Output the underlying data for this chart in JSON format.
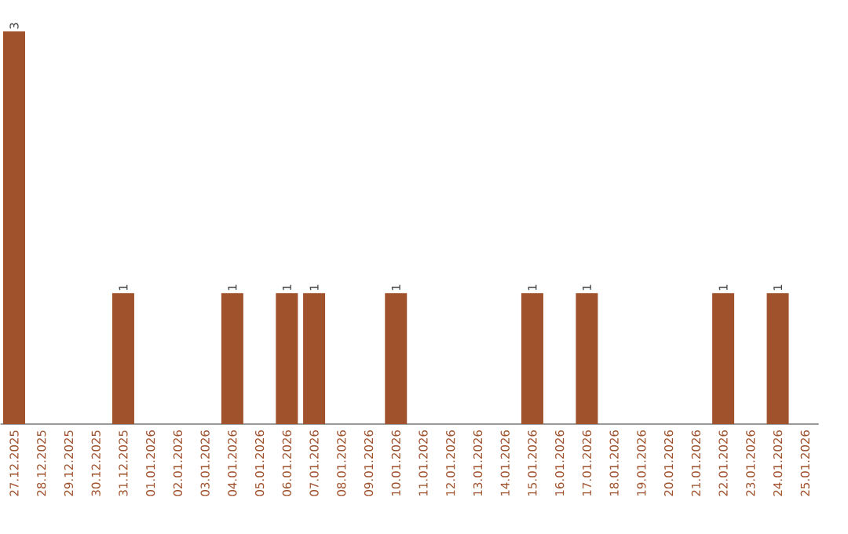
{
  "chart_data": {
    "type": "bar",
    "categories": [
      "27.12.2025",
      "28.12.2025",
      "29.12.2025",
      "30.12.2025",
      "31.12.2025",
      "01.01.2026",
      "02.01.2026",
      "03.01.2026",
      "04.01.2026",
      "05.01.2026",
      "06.01.2026",
      "07.01.2026",
      "08.01.2026",
      "09.01.2026",
      "10.01.2026",
      "11.01.2026",
      "12.01.2026",
      "13.01.2026",
      "14.01.2026",
      "15.01.2026",
      "16.01.2026",
      "17.01.2026",
      "18.01.2026",
      "19.01.2026",
      "20.01.2026",
      "21.01.2026",
      "22.01.2026",
      "23.01.2026",
      "24.01.2026",
      "25.01.2026"
    ],
    "values": [
      3,
      0,
      0,
      0,
      1,
      0,
      0,
      0,
      1,
      0,
      1,
      1,
      0,
      0,
      1,
      0,
      0,
      0,
      0,
      1,
      0,
      1,
      0,
      0,
      0,
      0,
      1,
      0,
      1,
      0
    ],
    "value_labels": [
      "3",
      null,
      null,
      null,
      "1",
      null,
      null,
      null,
      "1",
      null,
      "1",
      "1",
      null,
      null,
      "1",
      null,
      null,
      null,
      null,
      "1",
      null,
      "1",
      null,
      null,
      null,
      null,
      "1",
      null,
      "1",
      null
    ],
    "color": "#a0522d"
  }
}
